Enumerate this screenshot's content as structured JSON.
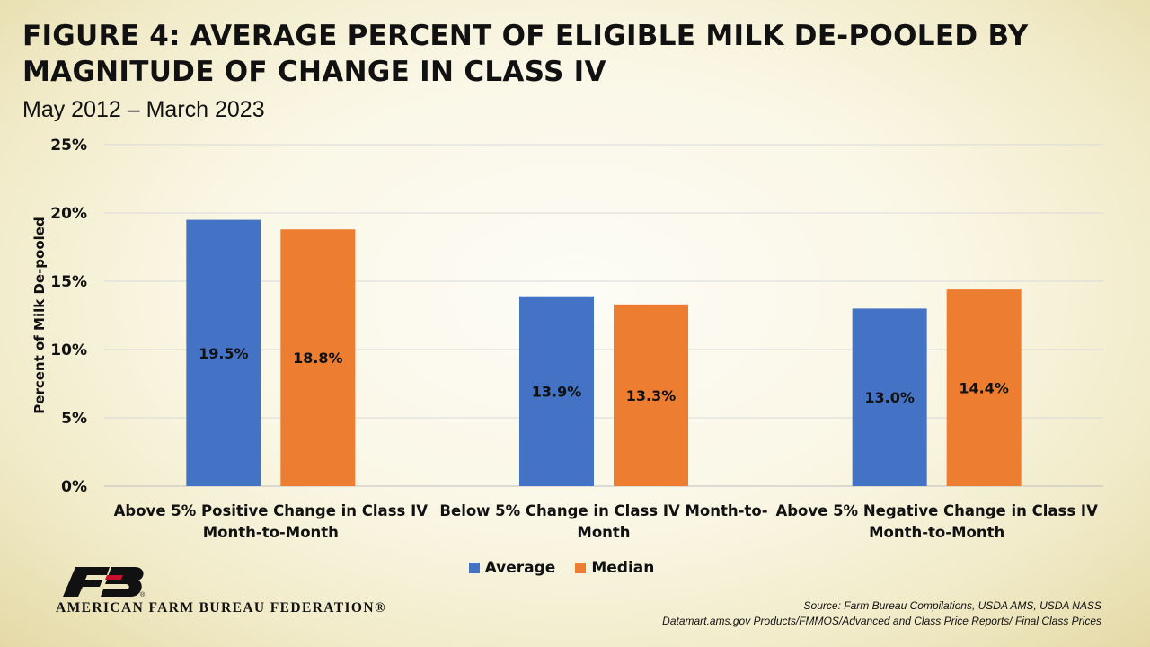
{
  "header": {
    "title": "FIGURE 4: AVERAGE PERCENT OF ELIGIBLE MILK DE-POOLED BY MAGNITUDE OF CHANGE IN CLASS IV",
    "subtitle": "May 2012 – March 2023"
  },
  "chart_data": {
    "type": "bar",
    "ylabel": "Percent of Milk De-pooled",
    "xlabel": "",
    "ylim": [
      0,
      25
    ],
    "yticks": [
      0,
      5,
      10,
      15,
      20,
      25
    ],
    "ytick_labels": [
      "0%",
      "5%",
      "10%",
      "15%",
      "20%",
      "25%"
    ],
    "grid": true,
    "legend_position": "bottom",
    "categories": [
      [
        "Above 5% Positive Change in Class IV",
        "Month-to-Month"
      ],
      [
        "Below 5% Change in Class IV Month-to-",
        "Month"
      ],
      [
        "Above 5% Negative Change in Class IV",
        "Month-to-Month"
      ]
    ],
    "series": [
      {
        "name": "Average",
        "color": "#4472c4",
        "values": [
          19.5,
          13.9,
          13.0
        ],
        "labels": [
          "19.5%",
          "13.9%",
          "13.0%"
        ]
      },
      {
        "name": "Median",
        "color": "#ed7d31",
        "values": [
          18.8,
          13.3,
          14.4
        ],
        "labels": [
          "18.8%",
          "13.3%",
          "14.4%"
        ]
      }
    ]
  },
  "legend": {
    "average_label": "Average",
    "median_label": "Median",
    "average_color": "#4472c4",
    "median_color": "#ed7d31"
  },
  "logo": {
    "icon": "fb-logo-icon",
    "text": "AMERICAN FARM BUREAU FEDERATION®"
  },
  "source": {
    "line1": "Source: Farm Bureau Compilations, USDA AMS, USDA NASS",
    "line2": "Datamart.ams.gov Products/FMMOS/Advanced and Class Price Reports/ Final Class Prices"
  }
}
